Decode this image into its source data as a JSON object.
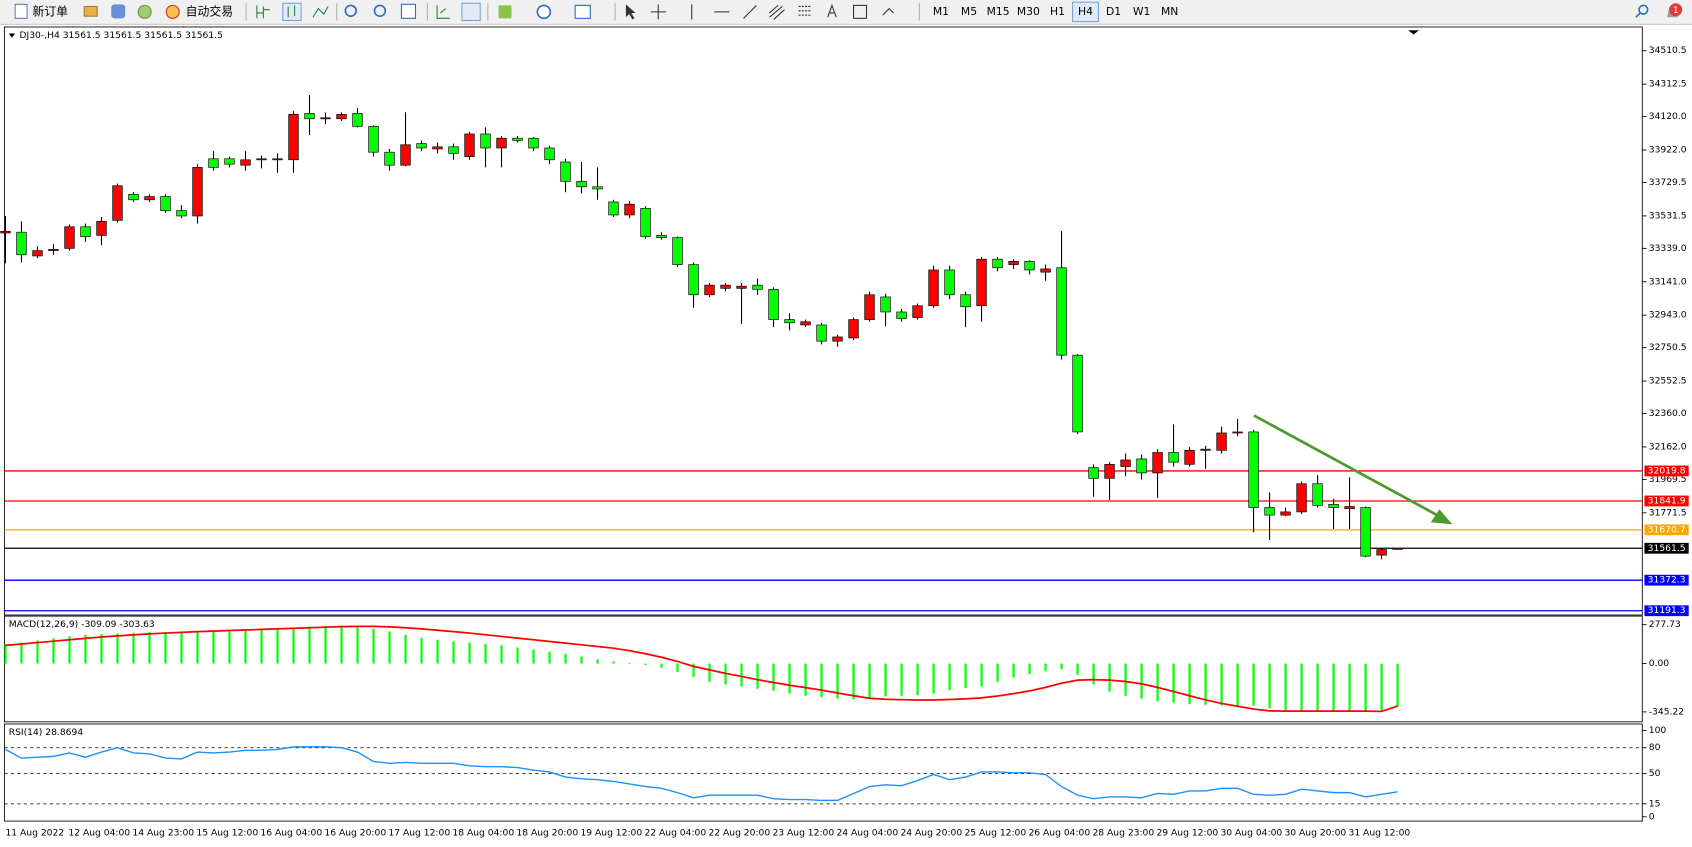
{
  "toolbar": {
    "new_order": "新订单",
    "auto_trade": "自动交易",
    "timeframes": [
      "M1",
      "M5",
      "M15",
      "M30",
      "H1",
      "H4",
      "D1",
      "W1",
      "MN"
    ],
    "active_timeframe": "H4",
    "notifications": 1
  },
  "chart_data": [
    {
      "type": "candlestick",
      "title": "DJ30-,H4  31561.5 31561.5 31561.5 31561.5",
      "categories": [
        "11 Aug 2022",
        null,
        null,
        null,
        "12 Aug 04:00",
        null,
        null,
        null,
        "14 Aug 23:00",
        null,
        null,
        null,
        "15 Aug 12:00",
        null,
        null,
        null,
        "16 Aug 04:00",
        null,
        null,
        null,
        "16 Aug 20:00",
        null,
        null,
        null,
        "17 Aug 12:00",
        null,
        null,
        null,
        "18 Aug 04:00",
        null,
        null,
        null,
        "18 Aug 20:00",
        null,
        null,
        null,
        "19 Aug 12:00",
        null,
        null,
        null,
        "22 Aug 04:00",
        null,
        null,
        null,
        "22 Aug 20:00",
        null,
        null,
        null,
        "23 Aug 12:00",
        null,
        null,
        null,
        "24 Aug 04:00",
        null,
        null,
        null,
        "24 Aug 20:00",
        null,
        null,
        null,
        "25 Aug 12:00",
        null,
        null,
        null,
        "26 Aug 04:00",
        null,
        null,
        null,
        "28 Aug 23:00",
        null,
        null,
        null,
        "29 Aug 12:00",
        null,
        null,
        null,
        "30 Aug 04:00",
        null,
        null,
        null,
        "30 Aug 20:00",
        null,
        null,
        null,
        "31 Aug 12:00",
        null,
        null,
        null
      ],
      "open": [
        33430,
        33435,
        33294,
        33326,
        33339,
        33467,
        33416,
        33505,
        33659,
        33627,
        33646,
        33563,
        33531,
        33870,
        33870,
        33832,
        33864,
        33864,
        33864,
        34139,
        34107,
        34107,
        34139,
        34062,
        33909,
        33832,
        33960,
        33928,
        33941,
        33883,
        34017,
        33934,
        33992,
        33992,
        33934,
        33851,
        33736,
        33704,
        33614,
        33537,
        33576,
        33416,
        33403,
        33243,
        33064,
        33102,
        33102,
        33121,
        33096,
        32917,
        32885,
        32885,
        32789,
        32808,
        32917,
        33051,
        32962,
        32929,
        32999,
        33211,
        33064,
        32999,
        33275,
        33243,
        33262,
        33198,
        33224,
        32706,
        32040,
        31976,
        32046,
        32091,
        32008,
        32129,
        32059,
        32142,
        32142,
        32245,
        32251,
        31803,
        31758,
        31777,
        31944,
        31822,
        31796,
        31803,
        31521,
        31561.5
      ],
      "high": [
        33531,
        33499,
        33352,
        33365,
        33480,
        33486,
        33525,
        33723,
        33672,
        33659,
        33659,
        33595,
        33838,
        33915,
        33883,
        33915,
        33889,
        33902,
        34152,
        34248,
        34145,
        34145,
        34171,
        34069,
        33928,
        34145,
        33979,
        33966,
        33960,
        34030,
        34056,
        34005,
        34005,
        33998,
        33947,
        33870,
        33851,
        33819,
        33627,
        33620,
        33589,
        33435,
        33409,
        33256,
        33134,
        33134,
        33134,
        33160,
        33108,
        32955,
        32917,
        32898,
        32827,
        32929,
        33083,
        33070,
        32981,
        33012,
        33236,
        33236,
        33083,
        33288,
        33288,
        33275,
        33268,
        33243,
        33441,
        32712,
        32059,
        32072,
        32123,
        32117,
        32149,
        32296,
        32161,
        32168,
        32283,
        32328,
        32264,
        31893,
        31803,
        31957,
        31995,
        31855,
        31982,
        31809,
        31560,
        31561.5
      ],
      "low": [
        33250,
        33256,
        33281,
        33301,
        33326,
        33377,
        33358,
        33493,
        33614,
        33614,
        33550,
        33518,
        33486,
        33800,
        33819,
        33800,
        33813,
        33787,
        33787,
        34011,
        34075,
        34094,
        34056,
        33883,
        33800,
        33826,
        33915,
        33902,
        33864,
        33864,
        33819,
        33819,
        33966,
        33915,
        33838,
        33672,
        33665,
        33627,
        33525,
        33518,
        33397,
        33390,
        33230,
        32987,
        33051,
        33083,
        32891,
        33064,
        32872,
        32853,
        32872,
        32770,
        32757,
        32795,
        32904,
        32878,
        32904,
        32917,
        32987,
        33038,
        32872,
        32904,
        33204,
        33217,
        33185,
        33147,
        32680,
        32238,
        31867,
        31848,
        31988,
        31969,
        31860,
        32046,
        32046,
        32033,
        32123,
        32226,
        31656,
        31611,
        31752,
        31764,
        31803,
        31675,
        31675,
        31509,
        31496,
        31561.5
      ],
      "close": [
        33440,
        33301,
        33326,
        33333,
        33467,
        33409,
        33499,
        33710,
        33627,
        33646,
        33563,
        33531,
        33819,
        33819,
        33838,
        33864,
        33870,
        33870,
        34133,
        34107,
        34113,
        34133,
        34062,
        33909,
        33832,
        33953,
        33934,
        33941,
        33902,
        34017,
        33934,
        33992,
        33979,
        33934,
        33864,
        33736,
        33704,
        33691,
        33537,
        33601,
        33409,
        33403,
        33243,
        33064,
        33121,
        33121,
        33115,
        33096,
        32917,
        32898,
        32904,
        32789,
        32814,
        32917,
        33064,
        32962,
        32923,
        32999,
        33211,
        33064,
        32993,
        33275,
        33224,
        33262,
        33211,
        33217,
        32706,
        32251,
        31976,
        32059,
        32085,
        32008,
        32129,
        32072,
        32142,
        32149,
        32245,
        32251,
        31803,
        31758,
        31777,
        31944,
        31816,
        31803,
        31809,
        31515,
        31554,
        31561.5
      ],
      "up_color": "#ff0000",
      "down_color": "#00ff00",
      "outline_color": "#000000",
      "ylim": [
        31172.3,
        34644.8
      ],
      "yticks": [
        34510.5,
        34312.5,
        {
          "value": 34120,
          "label": "34120.0"
        },
        {
          "value": 33922,
          "label": "33922.0"
        },
        33729.5,
        33531.5,
        {
          "value": 33339,
          "label": "33339.0"
        },
        {
          "value": 33141,
          "label": "33141.0"
        },
        {
          "value": 32943,
          "label": "32943.0"
        },
        32750.5,
        32552.5,
        {
          "value": 32360,
          "label": "32360.0"
        },
        {
          "value": 32162,
          "label": "32162.0"
        },
        31969.5,
        31771.5
      ],
      "levels": [
        {
          "value": 32019.8,
          "color": "#ff0000"
        },
        {
          "value": 31841.9,
          "color": "#ff0000"
        },
        {
          "value": 31670.7,
          "color": "#ffa500"
        },
        {
          "value": 31561.5,
          "color": "#000000"
        },
        {
          "value": 31372.3,
          "color": "#0000ff"
        },
        {
          "value": 31191.3,
          "color": "#0000ff"
        }
      ],
      "grid": false
    },
    {
      "type": "macd",
      "title": "MACD(12,26,9) -309.09 -303.63",
      "values": [
        140,
        150,
        165,
        180,
        195,
        205,
        210,
        215,
        220,
        225,
        225,
        225,
        225,
        230,
        235,
        240,
        245,
        250,
        255,
        265,
        270,
        270,
        265,
        250,
        230,
        205,
        185,
        170,
        160,
        150,
        140,
        130,
        115,
        100,
        85,
        70,
        50,
        30,
        15,
        5,
        -10,
        -30,
        -60,
        -95,
        -130,
        -150,
        -165,
        -180,
        -195,
        -215,
        -230,
        -240,
        -250,
        -255,
        -250,
        -235,
        -230,
        -225,
        -215,
        -190,
        -175,
        -165,
        -130,
        -100,
        -75,
        -55,
        -40,
        -80,
        -150,
        -200,
        -230,
        -250,
        -270,
        -280,
        -290,
        -295,
        -300,
        -300,
        -300,
        -320,
        -335,
        -340,
        -340,
        -340,
        -340,
        -340,
        -345,
        -309.09
      ],
      "signal": [
        130,
        140,
        150,
        160,
        170,
        180,
        190,
        198,
        205,
        212,
        218,
        223,
        228,
        232,
        236,
        240,
        244,
        248,
        252,
        256,
        260,
        264,
        266,
        266,
        262,
        256,
        248,
        238,
        228,
        218,
        206,
        194,
        182,
        170,
        158,
        146,
        134,
        122,
        110,
        92,
        70,
        45,
        15,
        -20,
        -45,
        -70,
        -92,
        -115,
        -135,
        -155,
        -172,
        -190,
        -210,
        -230,
        -248,
        -255,
        -258,
        -260,
        -260,
        -257,
        -252,
        -245,
        -232,
        -215,
        -195,
        -170,
        -140,
        -118,
        -115,
        -118,
        -128,
        -145,
        -170,
        -200,
        -230,
        -260,
        -285,
        -305,
        -325,
        -338,
        -340,
        -340,
        -340,
        -340,
        -340,
        -340,
        -342,
        -303.63
      ],
      "color": "#00ff00",
      "signal_color": "#ff0000",
      "ylim": [
        -408.6,
        331.5
      ],
      "yticks": [
        277.73,
        {
          "value": 0,
          "label": "0.00"
        },
        -345.22
      ]
    },
    {
      "type": "line",
      "title": "RSI(14) 28.8694",
      "values": [
        78,
        68,
        69,
        70,
        74,
        69,
        75,
        80,
        74,
        73,
        68,
        67,
        75,
        74,
        75,
        77,
        77,
        78,
        81,
        81,
        81,
        80,
        75,
        64,
        62,
        63,
        62,
        62,
        62,
        59,
        58,
        58,
        57,
        54,
        52,
        46,
        44,
        43,
        41,
        38,
        35,
        33,
        28,
        22,
        25,
        25,
        25,
        25,
        21,
        20,
        20,
        19,
        19,
        27,
        35,
        37,
        36,
        42,
        49,
        43,
        46,
        52,
        52,
        51,
        51,
        49,
        35,
        25,
        21,
        23,
        23,
        22,
        27,
        26,
        30,
        30,
        33,
        33,
        26,
        25,
        26,
        32,
        30,
        28,
        28,
        23,
        26,
        28.8694
      ],
      "color": "#1e90ff",
      "ylim": [
        -3.75,
        106.25
      ],
      "yticks": [
        100,
        80,
        50,
        15,
        0
      ],
      "grid": "dashed"
    }
  ]
}
